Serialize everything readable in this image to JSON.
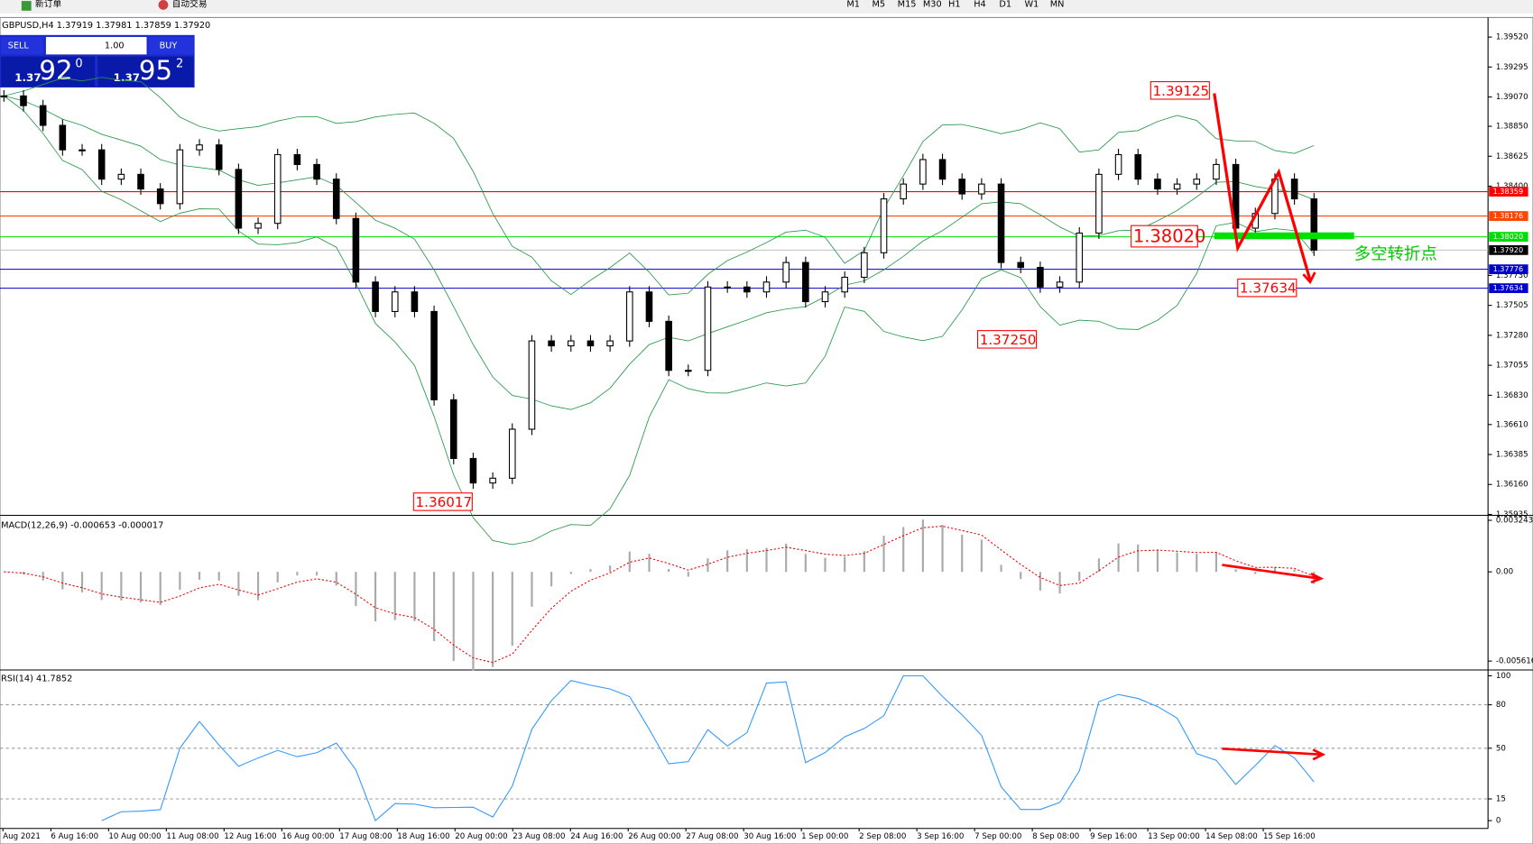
{
  "toolbar": {
    "new_order": "新订单",
    "auto_trading": "自动交易",
    "timeframes": [
      "M1",
      "M5",
      "M15",
      "M30",
      "H1",
      "H4",
      "D1",
      "W1",
      "MN"
    ]
  },
  "chart": {
    "type": "candlestick",
    "header": "GBPUSD,H4  1.37919 1.37981 1.37859 1.37920",
    "trade_panel": {
      "sell": "SELL",
      "buy": "BUY",
      "lots": "1.00",
      "bid_head": "1.37",
      "bid_digits": "92",
      "bid_tail": "0",
      "ask_head": "1.37",
      "ask_digits": "95",
      "ask_tail": "2"
    },
    "ylim": [
      1.35928,
      1.39667
    ],
    "yticks": [
      {
        "value": 1.3952,
        "label": "1.39520"
      },
      {
        "value": 1.39295,
        "label": "1.39295"
      },
      {
        "value": 1.3907,
        "label": "1.39070"
      },
      {
        "value": 1.3885,
        "label": "1.38850"
      },
      {
        "value": 1.38625,
        "label": "1.38625"
      },
      {
        "value": 1.384,
        "label": "1.38400"
      },
      {
        "value": 1.3773,
        "label": "1.37730"
      },
      {
        "value": 1.37505,
        "label": "1.37505"
      },
      {
        "value": 1.3728,
        "label": "1.37280"
      },
      {
        "value": 1.37055,
        "label": "1.37055"
      },
      {
        "value": 1.3683,
        "label": "1.36830"
      },
      {
        "value": 1.3661,
        "label": "1.36610"
      },
      {
        "value": 1.36385,
        "label": "1.36385"
      },
      {
        "value": 1.3616,
        "label": "1.36160"
      },
      {
        "value": 1.35935,
        "label": "1.35935"
      }
    ],
    "closes": [
      1.39078,
      1.39005,
      1.38857,
      1.38673,
      1.38673,
      1.38453,
      1.38489,
      1.38379,
      1.38269,
      1.38673,
      1.3871,
      1.38526,
      1.38085,
      1.38121,
      1.38637,
      1.38563,
      1.38453,
      1.38158,
      1.3768,
      1.37459,
      1.37606,
      1.37459,
      1.36796,
      1.36355,
      1.36171,
      1.36207,
      1.36575,
      1.37238,
      1.37201,
      1.37238,
      1.37201,
      1.37238,
      1.37606,
      1.37385,
      1.37017,
      1.37017,
      1.37643,
      1.37643,
      1.37606,
      1.3768,
      1.37827,
      1.37533,
      1.37606,
      1.37716,
      1.379,
      1.38305,
      1.38416,
      1.386,
      1.38453,
      1.38342,
      1.38416,
      1.37827,
      1.3779,
      1.37643,
      1.3768,
      1.38048,
      1.38489,
      1.38637,
      1.38453,
      1.38379,
      1.38416,
      1.38453,
      1.38563,
      1.38085,
      1.38195,
      1.38453,
      1.38305,
      1.3792
    ],
    "levels": [
      {
        "value": 1.38359,
        "label": "1.38359",
        "color": "#ff0000"
      },
      {
        "value": 1.38176,
        "label": "1.38176",
        "color": "#ff4500"
      },
      {
        "value": 1.3802,
        "label": "1.38020",
        "color": "#00dd00"
      },
      {
        "value": 1.3792,
        "label": "1.37920",
        "color": "#c0c0c0"
      },
      {
        "value": 1.37776,
        "label": "1.37776",
        "color": "#0000cc"
      },
      {
        "value": 1.37634,
        "label": "1.37634",
        "color": "#0000cc"
      }
    ],
    "annotations": [
      "1.39125",
      "1.38020",
      "1.37634",
      "1.37250",
      "1.36017"
    ],
    "note": "多空转折点",
    "x_labels": [
      "Aug 2021",
      "6 Aug 16:00",
      "10 Aug 00:00",
      "11 Aug 08:00",
      "12 Aug 16:00",
      "16 Aug 00:00",
      "17 Aug 08:00",
      "18 Aug 16:00",
      "20 Aug 00:00",
      "23 Aug 08:00",
      "24 Aug 16:00",
      "26 Aug 00:00",
      "27 Aug 08:00",
      "30 Aug 16:00",
      "1 Sep 00:00",
      "2 Sep 08:00",
      "3 Sep 16:00",
      "7 Sep 00:00",
      "8 Sep 08:00",
      "9 Sep 16:00",
      "13 Sep 00:00",
      "14 Sep 08:00",
      "15 Sep 16:00"
    ]
  },
  "macd": {
    "label": "MACD(12,26,9) -0.000653 -0.000017",
    "ylim": [
      -0.006174,
      0.003555
    ],
    "yticks": [
      {
        "value": 0.003243,
        "label": "0.003243"
      },
      {
        "value": 0,
        "label": "0.00"
      },
      {
        "value": -0.005616,
        "label": "-0.005616"
      }
    ]
  },
  "rsi": {
    "label": "RSI(14) 41.7852",
    "ylim": [
      -5.4,
      104.05
    ],
    "yticks": [
      100,
      80,
      50,
      15,
      0
    ]
  }
}
